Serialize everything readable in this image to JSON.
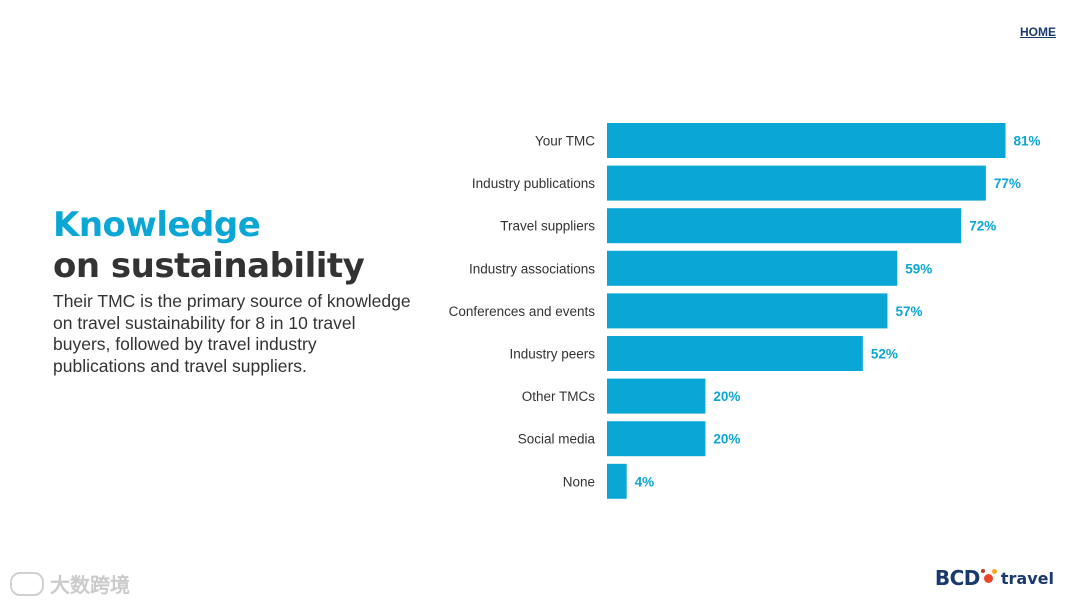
{
  "header": {
    "home_label": "HOME"
  },
  "intro": {
    "title_line1": "Knowledge",
    "title_line2": "on sustainability",
    "description": "Their TMC is the primary source of knowledge on travel sustainability for 8 in 10 travel buyers, followed by travel industry publications and travel suppliers."
  },
  "chart_data": {
    "type": "bar",
    "orientation": "horizontal",
    "categories": [
      "Your TMC",
      "Industry publications",
      "Travel suppliers",
      "Industry associations",
      "Conferences and events",
      "Industry peers",
      "Other TMCs",
      "Social media",
      "None"
    ],
    "values": [
      81,
      77,
      72,
      59,
      57,
      52,
      20,
      20,
      4
    ],
    "value_labels": [
      "81%",
      "77%",
      "72%",
      "59%",
      "57%",
      "52%",
      "20%",
      "20%",
      "4%"
    ],
    "xlim": [
      0,
      100
    ],
    "grid": false,
    "bar_color": "#0aa7d6",
    "label_color": "#0aa7d6"
  },
  "logo": {
    "text_b": "BCD",
    "text_sub": "travel",
    "dot_colors": [
      "#e8452c",
      "#f5a623",
      "#c0392b"
    ]
  },
  "watermark": {
    "text": "大数跨境"
  },
  "colors": {
    "accent": "#0aa7d6",
    "dark_text": "#333333",
    "brand_navy": "#1a3a6e"
  }
}
